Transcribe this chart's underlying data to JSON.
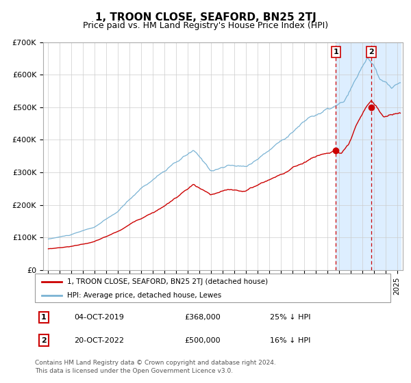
{
  "title": "1, TROON CLOSE, SEAFORD, BN25 2TJ",
  "subtitle": "Price paid vs. HM Land Registry's House Price Index (HPI)",
  "hpi_color": "#7ab3d4",
  "property_color": "#cc0000",
  "dashed_line_color": "#cc0000",
  "highlight_bg": "#ddeeff",
  "grid_color": "#cccccc",
  "ylim": [
    0,
    700000
  ],
  "yticks": [
    0,
    100000,
    200000,
    300000,
    400000,
    500000,
    600000,
    700000
  ],
  "ytick_labels": [
    "£0",
    "£100K",
    "£200K",
    "£300K",
    "£400K",
    "£500K",
    "£600K",
    "£700K"
  ],
  "transaction1_date": "04-OCT-2019",
  "transaction1_price": 368000,
  "transaction1_pct": "25% ↓ HPI",
  "transaction1_x": 2019.75,
  "transaction2_date": "20-OCT-2022",
  "transaction2_price": 500000,
  "transaction2_pct": "16% ↓ HPI",
  "transaction2_x": 2022.8,
  "highlight_start": 2019.75,
  "highlight_end": 2025.3,
  "legend_property": "1, TROON CLOSE, SEAFORD, BN25 2TJ (detached house)",
  "legend_hpi": "HPI: Average price, detached house, Lewes",
  "footer1": "Contains HM Land Registry data © Crown copyright and database right 2024.",
  "footer2": "This data is licensed under the Open Government Licence v3.0.",
  "xmin": 1994.6,
  "xmax": 2025.5,
  "x_years": [
    1995,
    1996,
    1997,
    1998,
    1999,
    2000,
    2001,
    2002,
    2003,
    2004,
    2005,
    2006,
    2007,
    2008,
    2009,
    2010,
    2011,
    2012,
    2013,
    2014,
    2015,
    2016,
    2017,
    2018,
    2019,
    2020,
    2021,
    2022,
    2023,
    2024,
    2025
  ],
  "title_fontsize": 11,
  "subtitle_fontsize": 9,
  "tick_fontsize": 8,
  "legend_fontsize": 7.5,
  "table_fontsize": 8,
  "footer_fontsize": 6.5
}
